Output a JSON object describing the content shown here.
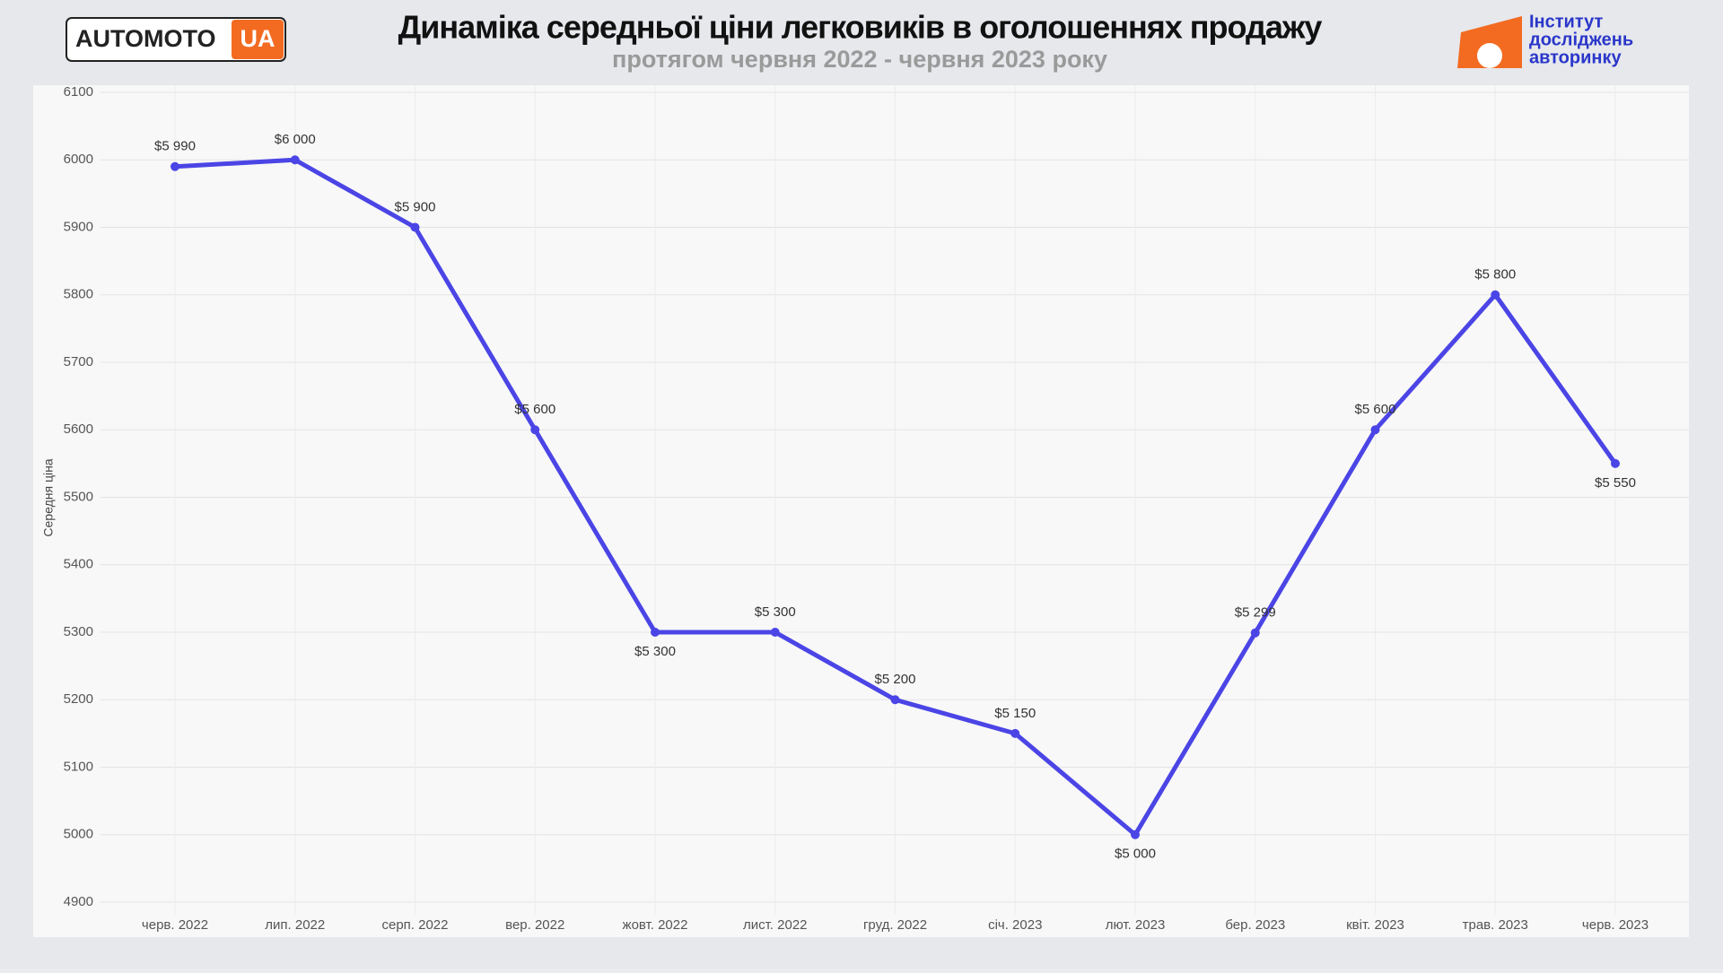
{
  "header": {
    "logo_left": "AUTOMOTO",
    "logo_left_badge": "UA",
    "logo_right": [
      "Інститут",
      "досліджень",
      "авторинку"
    ]
  },
  "chart_data": {
    "type": "line",
    "title": "Динаміка середньої ціни легковиків в оголошеннях продажу",
    "subtitle": "протягом червня 2022 - червня 2023 року",
    "y_axis_label": "Середня ціна",
    "categories": [
      "черв. 2022",
      "лип. 2022",
      "серп. 2022",
      "вер. 2022",
      "жовт. 2022",
      "лист. 2022",
      "груд. 2022",
      "січ. 2023",
      "лют. 2023",
      "бер. 2023",
      "квіт. 2023",
      "трав. 2023",
      "черв. 2023"
    ],
    "series": [
      {
        "name": "Середня ціна",
        "color": "#4b45e6",
        "values": [
          5990,
          6000,
          5900,
          5600,
          5300,
          5300,
          5200,
          5150,
          5000,
          5299,
          5600,
          5800,
          5550
        ],
        "value_labels": [
          "$5 990",
          "$6 000",
          "$5 900",
          "$5 600",
          "$5 300",
          "$5 300",
          "$5 200",
          "$5 150",
          "$5 000",
          "$5 299",
          "$5 600",
          "$5 800",
          "$5 550"
        ]
      }
    ],
    "ylim": [
      4900,
      6100
    ],
    "yticks": [
      4900,
      5000,
      5100,
      5200,
      5300,
      5400,
      5500,
      5600,
      5700,
      5800,
      5900,
      6000,
      6100
    ],
    "grid": true
  }
}
